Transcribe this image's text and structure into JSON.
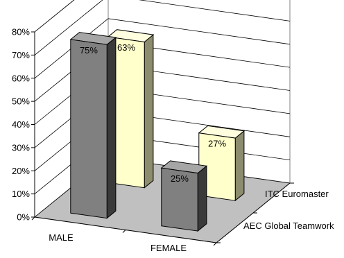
{
  "chart_data": {
    "type": "bar",
    "categories": [
      "MALE",
      "FEMALE"
    ],
    "series": [
      {
        "name": "ITC Euromaster",
        "values": [
          63,
          27
        ],
        "data_labels": [
          "63%",
          "27%"
        ]
      },
      {
        "name": "AEC Global Teamwork",
        "values": [
          75,
          25
        ],
        "data_labels": [
          "75%",
          "25%"
        ]
      }
    ],
    "ylim": [
      0,
      80
    ],
    "y_ticks": [
      {
        "value": 0,
        "label": "0%"
      },
      {
        "value": 10,
        "label": "10%"
      },
      {
        "value": 20,
        "label": "20%"
      },
      {
        "value": 30,
        "label": "30%"
      },
      {
        "value": 40,
        "label": "40%"
      },
      {
        "value": 50,
        "label": "50%"
      },
      {
        "value": 60,
        "label": "60%"
      },
      {
        "value": 70,
        "label": "70%"
      },
      {
        "value": 80,
        "label": "80%"
      }
    ],
    "grid": true,
    "three_d": true,
    "colors": {
      "series_front": "#808080",
      "series_front_side": "#3a3a3a",
      "series_front_top": "#a6a6a6",
      "series_back": "#ffffcc",
      "series_back_side": "#8c8c6e",
      "series_back_top": "#ffffe0",
      "floor": "#c0c0c0",
      "grid_line": "#000000"
    }
  }
}
